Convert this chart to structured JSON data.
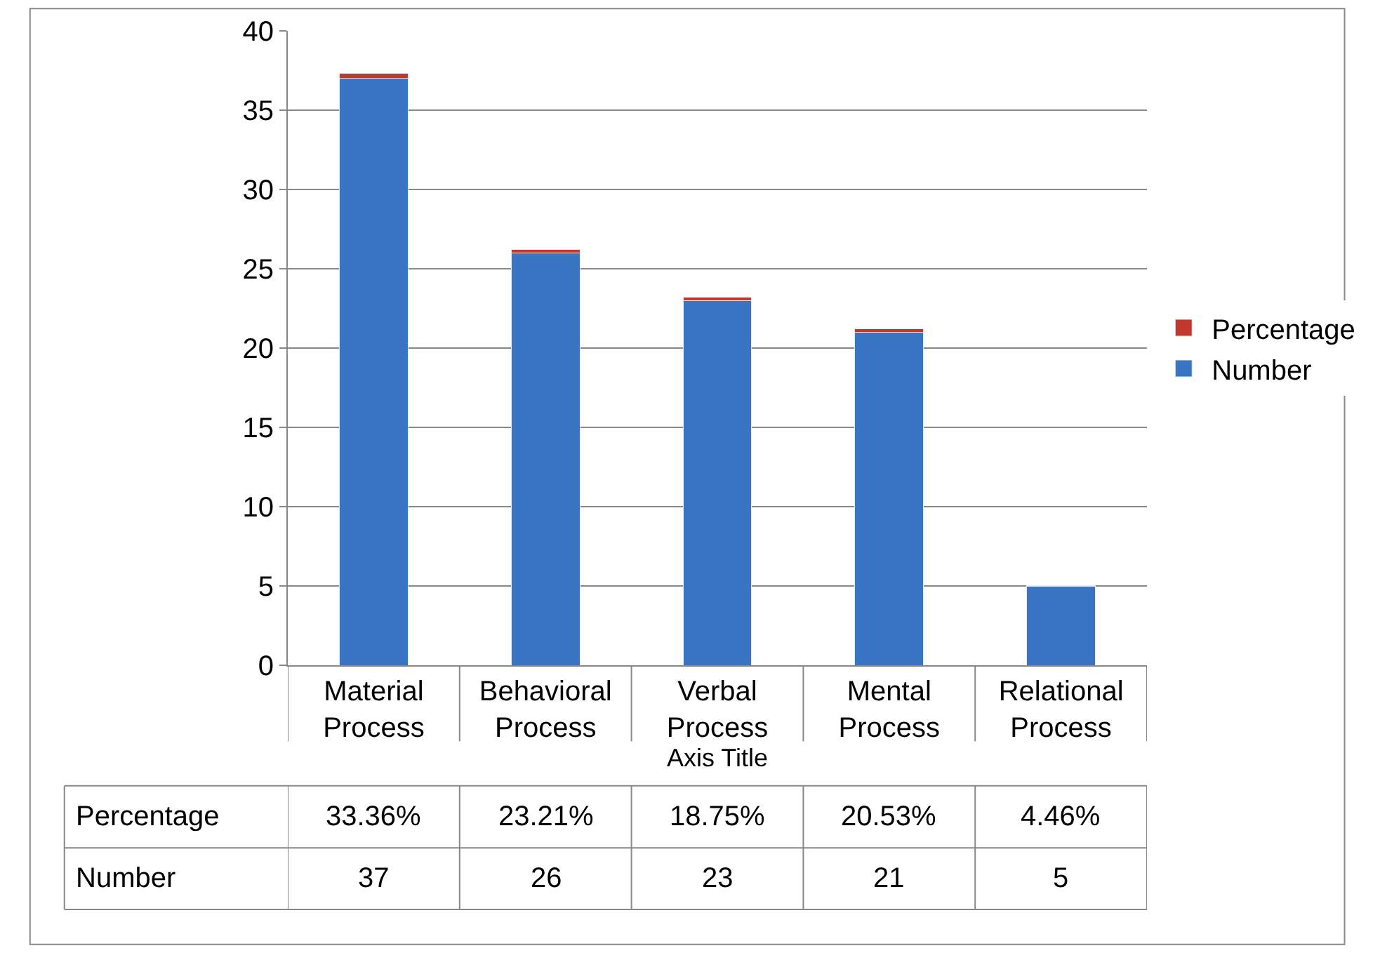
{
  "chart_data": {
    "type": "bar",
    "stacked": true,
    "xlabel": "Axis Title",
    "categories": [
      "Material Process",
      "Behavioral Process",
      "Verbal Process",
      "Mental Process",
      "Relational Process"
    ],
    "series": [
      {
        "name": "Number",
        "color": "#3a75c4",
        "values": [
          37,
          26,
          23,
          21,
          5
        ],
        "value_labels": [
          "37",
          "26",
          "23",
          "21",
          "5"
        ]
      },
      {
        "name": "Percentage",
        "color": "#c0392b",
        "values": [
          0.3336,
          0.2321,
          0.1875,
          0.2053,
          0.0446
        ],
        "value_labels": [
          "33.36%",
          "23.21%",
          "18.75%",
          "20.53%",
          "4.46%"
        ]
      }
    ],
    "ylim": [
      0,
      40
    ],
    "yticks": [
      0,
      5,
      10,
      15,
      20,
      25,
      30,
      35,
      40
    ],
    "grid": "y",
    "legend": "right"
  }
}
